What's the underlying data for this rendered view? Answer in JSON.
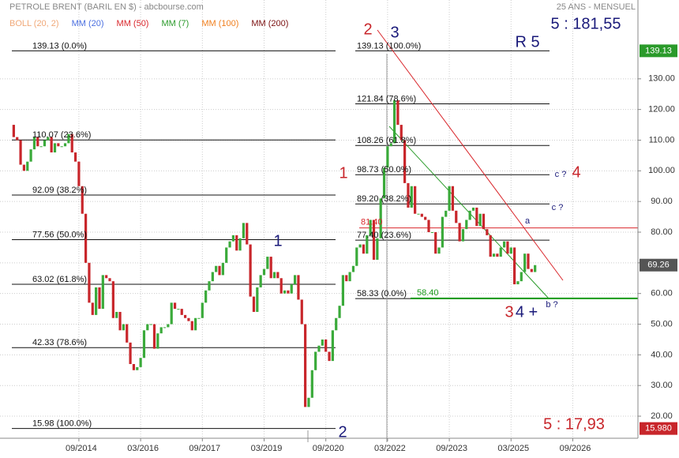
{
  "chart_data": {
    "type": "candlestick",
    "title": "PETROLE BRENT (BARIL EN $) - abcbourse.com",
    "subtitle": "25 ANS - MENSUEL",
    "legend": [
      {
        "name": "BOLL (20, 2)",
        "color": "#f0a878"
      },
      {
        "name": "MM (20)",
        "color": "#4a6fe0"
      },
      {
        "name": "MM (50)",
        "color": "#d9262b"
      },
      {
        "name": "MM (7)",
        "color": "#2a9a2a"
      },
      {
        "name": "MM (100)",
        "color": "#f08020"
      },
      {
        "name": "MM (200)",
        "color": "#7a1010"
      }
    ],
    "up_color": "#3aaa3a",
    "down_color": "#c8262b",
    "x": [
      "01/2013",
      "02/2013",
      "03/2013",
      "04/2013",
      "05/2013",
      "06/2013",
      "07/2013",
      "08/2013",
      "09/2013",
      "10/2013",
      "11/2013",
      "12/2013",
      "01/2014",
      "02/2014",
      "03/2014",
      "04/2014",
      "05/2014",
      "06/2014",
      "07/2014",
      "08/2014",
      "09/2014",
      "10/2014",
      "11/2014",
      "12/2014",
      "01/2015",
      "02/2015",
      "03/2015",
      "04/2015",
      "05/2015",
      "06/2015",
      "07/2015",
      "08/2015",
      "09/2015",
      "10/2015",
      "11/2015",
      "12/2015",
      "01/2016",
      "02/2016",
      "03/2016",
      "04/2016",
      "05/2016",
      "06/2016",
      "07/2016",
      "08/2016",
      "09/2016",
      "10/2016",
      "11/2016",
      "12/2016",
      "01/2017",
      "02/2017",
      "03/2017",
      "04/2017",
      "05/2017",
      "06/2017",
      "07/2017",
      "08/2017",
      "09/2017",
      "10/2017",
      "11/2017",
      "12/2017",
      "01/2018",
      "02/2018",
      "03/2018",
      "04/2018",
      "05/2018",
      "06/2018",
      "07/2018",
      "08/2018",
      "09/2018",
      "10/2018",
      "11/2018",
      "12/2018",
      "01/2019",
      "02/2019",
      "03/2019",
      "04/2019",
      "05/2019",
      "06/2019",
      "07/2019",
      "08/2019",
      "09/2019",
      "10/2019",
      "11/2019",
      "12/2019",
      "01/2020",
      "02/2020",
      "03/2020",
      "04/2020",
      "05/2020",
      "06/2020",
      "07/2020",
      "08/2020",
      "09/2020",
      "10/2020",
      "11/2020",
      "12/2020",
      "01/2021",
      "02/2021",
      "03/2021",
      "04/2021",
      "05/2021",
      "06/2021",
      "07/2021",
      "08/2021",
      "09/2021",
      "10/2021",
      "11/2021",
      "12/2021",
      "01/2022",
      "02/2022",
      "03/2022",
      "04/2022",
      "05/2022",
      "06/2022",
      "07/2022",
      "08/2022",
      "09/2022",
      "10/2022",
      "11/2022",
      "12/2022",
      "01/2023",
      "02/2023",
      "03/2023",
      "04/2023",
      "05/2023",
      "06/2023",
      "07/2023",
      "08/2023",
      "09/2023",
      "10/2023",
      "11/2023",
      "12/2023",
      "01/2024",
      "02/2024",
      "03/2024",
      "04/2024",
      "05/2024",
      "06/2024",
      "07/2024",
      "08/2024",
      "09/2024",
      "10/2024",
      "11/2024",
      "12/2024",
      "01/2025",
      "02/2025",
      "03/2025",
      "04/2025",
      "05/2025",
      "06/2025",
      "07/2025",
      "08/2025",
      "09/2025",
      "10/2025"
    ],
    "values": [
      115,
      111,
      110,
      102,
      100,
      103,
      107,
      111,
      108,
      108,
      110,
      111,
      106,
      109,
      108,
      108,
      109,
      112,
      106,
      103,
      95,
      86,
      70,
      57,
      53,
      62,
      55,
      66,
      65,
      64,
      52,
      54,
      48,
      50,
      44,
      37,
      35,
      36,
      39,
      48,
      50,
      50,
      42,
      47,
      49,
      49,
      50,
      57,
      55,
      55,
      53,
      52,
      51,
      48,
      52,
      52,
      57,
      61,
      64,
      67,
      69,
      66,
      70,
      75,
      77,
      79,
      74,
      78,
      83,
      76,
      59,
      54,
      62,
      66,
      68,
      72,
      65,
      67,
      65,
      60,
      61,
      60,
      63,
      66,
      58,
      50,
      23,
      26,
      35,
      41,
      43,
      45,
      41,
      38,
      48,
      52,
      56,
      66,
      64,
      67,
      69,
      75,
      76,
      73,
      79,
      84,
      71,
      78,
      91,
      101,
      108,
      109,
      123,
      115,
      110,
      96,
      88,
      95,
      86,
      86,
      85,
      84,
      80,
      80,
      73,
      75,
      85,
      87,
      95,
      87,
      83,
      77,
      81,
      84,
      87,
      88,
      82,
      86,
      81,
      79,
      72,
      73,
      72,
      75,
      77,
      73,
      75,
      63,
      64,
      67,
      73,
      68,
      67,
      69.26
    ],
    "xlim": [
      "10/2012",
      "04/2028"
    ],
    "xticks": [
      "09/2014",
      "03/2016",
      "09/2017",
      "03/2019",
      "09/2020",
      "03/2022",
      "09/2023",
      "03/2025",
      "09/2026"
    ],
    "ylim": [
      12.8,
      155.7
    ],
    "yticks": [
      {
        "value": 20,
        "label": "20.00"
      },
      {
        "value": 30,
        "label": "30.00"
      },
      {
        "value": 40,
        "label": "40.00"
      },
      {
        "value": 50,
        "label": "50.00"
      },
      {
        "value": 60,
        "label": "60.00"
      },
      {
        "value": 70,
        "label": "70.00"
      },
      {
        "value": 80,
        "label": "80.00"
      },
      {
        "value": 90,
        "label": "90.00"
      },
      {
        "value": 100,
        "label": "100.00"
      },
      {
        "value": 110,
        "label": "110.00"
      },
      {
        "value": 120,
        "label": "120.00"
      },
      {
        "value": 130,
        "label": "130.00"
      }
    ],
    "grid": true,
    "fib_left": [
      {
        "value": 139.13,
        "label": "139.13  (0.0%)"
      },
      {
        "value": 110.07,
        "label": "110.07  (23.6%)"
      },
      {
        "value": 92.09,
        "label": "92.09  (38.2%)"
      },
      {
        "value": 77.56,
        "label": "77.56  (50.0%)"
      },
      {
        "value": 63.02,
        "label": "63.02  (61.8%)"
      },
      {
        "value": 42.33,
        "label": "42.33  (78.6%)"
      },
      {
        "value": 15.98,
        "label": "15.98  (100.0%)"
      }
    ],
    "fib_right": [
      {
        "value": 139.13,
        "label": "139.13  (100.0%)"
      },
      {
        "value": 121.84,
        "label": "121.84  (78.6%)"
      },
      {
        "value": 108.26,
        "label": "108.26  (61.8%)"
      },
      {
        "value": 98.73,
        "label": "98.73  (50.0%)"
      },
      {
        "value": 89.2,
        "label": "89.20  (38.2%)"
      },
      {
        "value": 77.4,
        "label": "77.40  (23.6%)"
      },
      {
        "value": 58.33,
        "label": "58.33  (0.0%)"
      }
    ],
    "levels": [
      {
        "value": 81.4,
        "label": "81.40",
        "color": "#d9262b"
      },
      {
        "value": 58.4,
        "label": "58.40",
        "color": "#1a9a1a"
      }
    ],
    "price_tags": [
      {
        "value": 139.13,
        "color": "#2a9a2a"
      },
      {
        "value": 69.26,
        "color": "#555555"
      },
      {
        "value": 15.98,
        "label": "15.980",
        "color": "#c8262b"
      }
    ],
    "annotations": [
      {
        "text": "2",
        "color": "#c8262b"
      },
      {
        "text": "3",
        "color": "#1a1a7a"
      },
      {
        "text": "R 5",
        "color": "#1a1a7a"
      },
      {
        "text": "5 : 181,55",
        "color": "#1a1a7a"
      },
      {
        "text": "1",
        "color": "#c8262b"
      },
      {
        "text": "1",
        "color": "#1a1a7a"
      },
      {
        "text": "2",
        "color": "#1a1a7a"
      },
      {
        "text": "c ?",
        "color": "#1a1a7a"
      },
      {
        "text": "4",
        "color": "#c8262b"
      },
      {
        "text": "c ?",
        "color": "#1a1a7a"
      },
      {
        "text": "a",
        "color": "#1a1a7a"
      },
      {
        "text": "3",
        "color": "#c8262b"
      },
      {
        "text": "4 +",
        "color": "#1a1a7a"
      },
      {
        "text": "b ?",
        "color": "#1a1a7a"
      },
      {
        "text": "5 : 17,93",
        "color": "#c8262b"
      }
    ]
  }
}
